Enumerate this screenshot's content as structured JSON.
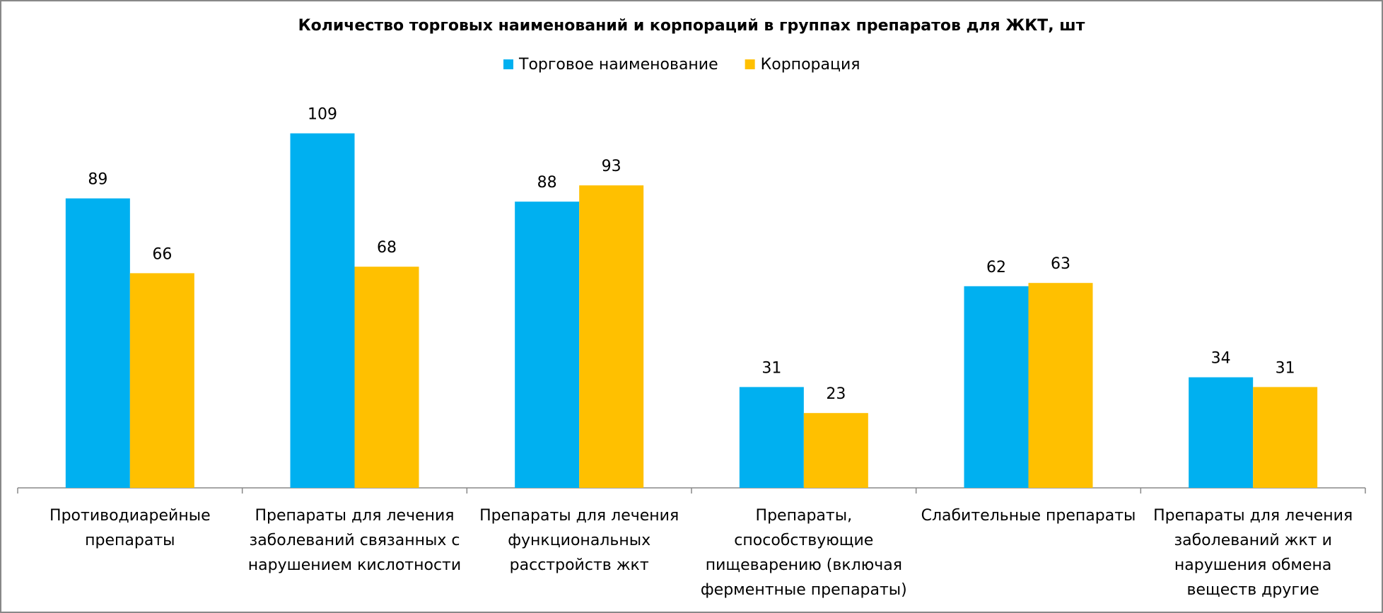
{
  "chart_data": {
    "type": "bar",
    "title": "Количество торговых наименований и корпораций в группах препаратов для ЖКТ, шт",
    "categories": [
      "Противодиарейные препараты",
      "Препараты для лечения заболеваний связанных с нарушением кислотности",
      "Препараты для лечения функциональных расстройств жкт",
      "Препараты, способствующие пищеварению (включая ферментные препараты)",
      "Слабительные препараты",
      "Препараты для лечения заболеваний жкт и нарушения обмена веществ другие"
    ],
    "series": [
      {
        "name": "Торговое наименование",
        "color": "#00b0f0",
        "values": [
          89,
          109,
          88,
          31,
          62,
          34
        ]
      },
      {
        "name": "Корпорация",
        "color": "#ffc000",
        "values": [
          66,
          68,
          93,
          23,
          63,
          31
        ]
      }
    ],
    "legend": "top"
  }
}
